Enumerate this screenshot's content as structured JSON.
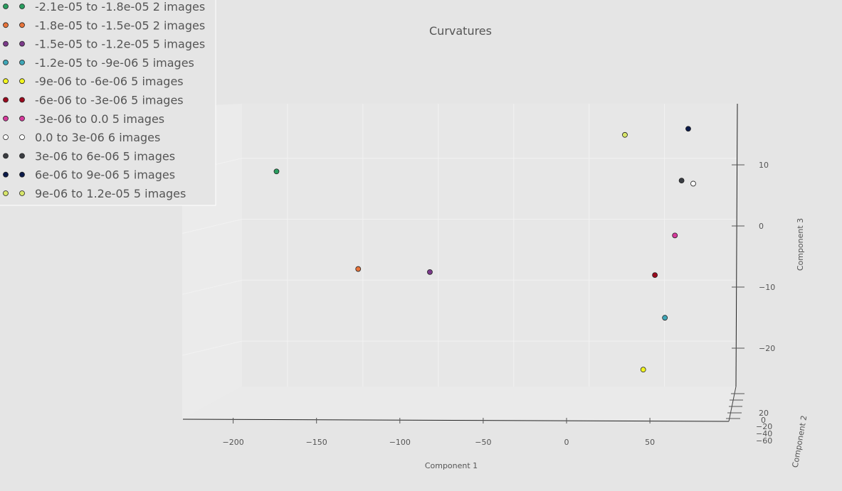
{
  "chart_data": {
    "type": "scatter",
    "projection": "3d",
    "title": "Curvatures",
    "xlabel": "Component 1",
    "ylabel": "Component 2",
    "zlabel": "Component 3",
    "x_ticks": [
      "−200",
      "−150",
      "−100",
      "−50",
      "0",
      "50"
    ],
    "y_ticks": [
      "20",
      "0",
      "−20",
      "−40",
      "−60"
    ],
    "z_ticks": [
      "10",
      "0",
      "−10",
      "−20"
    ],
    "xlim": [
      -230,
      100
    ],
    "zlim": [
      -30,
      20
    ],
    "grid": true,
    "legend_position": "top-left",
    "series": [
      {
        "name": "-2.1e-05 to -1.8e-05 2 images",
        "color": "#2a9d5f",
        "x": -174,
        "z": 9
      },
      {
        "name": "-1.8e-05 to -1.5e-05 2 images",
        "color": "#e8743b",
        "x": -125,
        "z": -7
      },
      {
        "name": "-1.5e-05 to -1.2e-05 5 images",
        "color": "#7b3a8a",
        "x": -82,
        "z": -7.5
      },
      {
        "name": "-1.2e-05 to -9e-06 5 images",
        "color": "#3fa7b8",
        "x": 59,
        "z": -15
      },
      {
        "name": "-9e-06 to -6e-06 5 images",
        "color": "#f2f51f",
        "x": 46,
        "z": -23.5
      },
      {
        "name": "-6e-06 to -3e-06 5 images",
        "color": "#9a0a1e",
        "x": 53,
        "z": -8
      },
      {
        "name": "-3e-06 to 0.0 5 images",
        "color": "#d63a9c",
        "x": 65,
        "z": -1.5
      },
      {
        "name": "0.0 to 3e-06 6 images",
        "color": "#ffffff",
        "x": 76,
        "z": 7
      },
      {
        "name": "3e-06 to 6e-06 5 images",
        "color": "#3a3d42",
        "x": 69,
        "z": 7.5
      },
      {
        "name": "6e-06 to 9e-06 5 images",
        "color": "#0b1a4a",
        "x": 73,
        "z": 16
      },
      {
        "name": "9e-06 to 1.2e-05 5 images",
        "color": "#d7e56a",
        "x": 35,
        "z": 15
      }
    ]
  }
}
